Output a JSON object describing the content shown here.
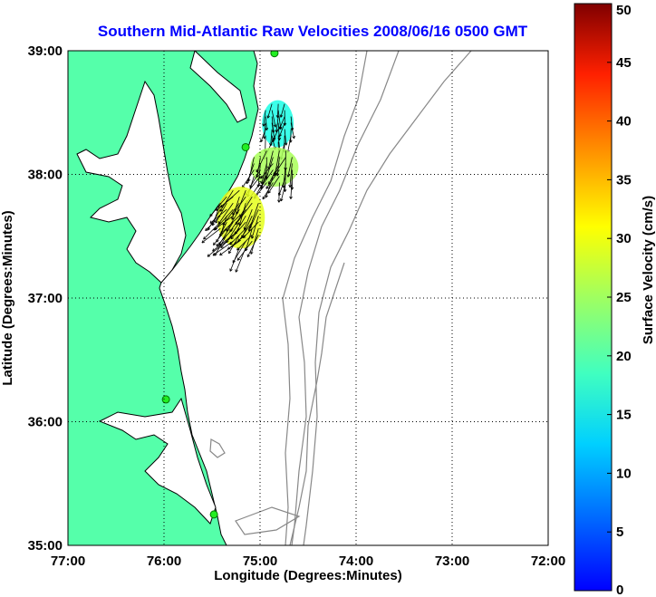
{
  "title": "Southern Mid-Atlantic Raw Velocities 2008/06/16 0500 GMT",
  "title_color": "#0000ff",
  "xlabel": "Longitude (Degrees:Minutes)",
  "ylabel": "Latitude (Degrees:Minutes)",
  "colorbar": {
    "label": "Surface Velocity (cm/s)",
    "min": 0,
    "max": 50,
    "ticks": [
      "0",
      "5",
      "10",
      "15",
      "20",
      "25",
      "30",
      "35",
      "40",
      "45",
      "50"
    ]
  },
  "colors": {
    "land": "#55ffaa",
    "coastline": "#000000",
    "bathymetry": "#888888",
    "grid": "#000000",
    "station": "#22ee22"
  },
  "chart_data": {
    "type": "map",
    "x_ticks": [
      "77:00",
      "76:00",
      "75:00",
      "74:00",
      "73:00",
      "72:00"
    ],
    "y_ticks": [
      "39:00",
      "38:00",
      "37:00",
      "36:00",
      "35:00"
    ],
    "xlim": [
      -77,
      -72
    ],
    "ylim": [
      35,
      39
    ],
    "grid": true,
    "stations": [
      {
        "lon": -74.85,
        "lat": 38.98
      },
      {
        "lon": -75.15,
        "lat": 38.22
      },
      {
        "lon": -75.98,
        "lat": 36.18
      },
      {
        "lon": -75.48,
        "lat": 35.25
      }
    ],
    "vector_field": {
      "units": "cm/s",
      "regions": [
        {
          "lon_min": -74.98,
          "lon_max": -74.65,
          "lat_min": 38.22,
          "lat_max": 38.6,
          "speed": 20,
          "direction_deg": 185
        },
        {
          "lon_min": -75.1,
          "lon_max": -74.6,
          "lat_min": 37.9,
          "lat_max": 38.22,
          "speed": 27,
          "direction_deg": 200
        },
        {
          "lon_min": -75.45,
          "lon_max": -74.95,
          "lat_min": 37.4,
          "lat_max": 37.9,
          "speed": 30,
          "direction_deg": 215
        }
      ]
    }
  }
}
